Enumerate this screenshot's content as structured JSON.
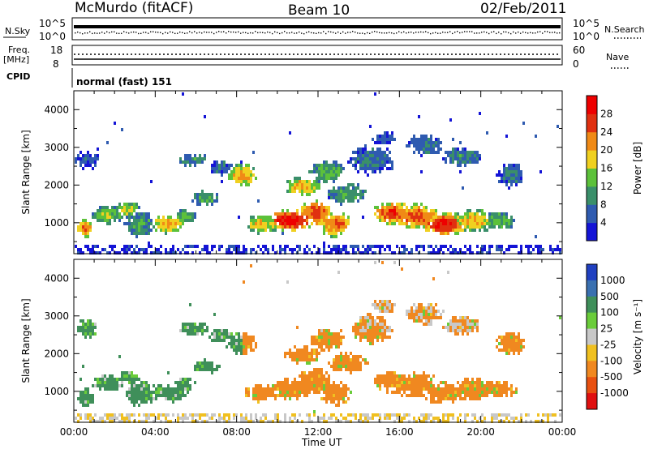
{
  "header": {
    "station": "McMurdo (fitACF)",
    "beam": "Beam 10",
    "date": "02/Feb/2011"
  },
  "strips": {
    "nsky_label": "N.Sky",
    "nsky_tick_top": "10^5",
    "nsky_tick_bottom": "10^0",
    "nsearch_label": "N.Search",
    "nsearch_tick_top": "10^5",
    "nsearch_tick_bottom": "10^0",
    "freq_label": "Freq.",
    "freq_unit": "[MHz]",
    "freq_tick_top": "18",
    "freq_tick_bottom": "8",
    "nave_label": "Nave",
    "nave_tick_top": "60",
    "nave_tick_bottom": "0",
    "cpid_label": "CPID",
    "cpid_value": "normal (fast) 151"
  },
  "chart_data": [
    {
      "type": "heatmap",
      "panel": "power",
      "ylabel": "Slant Range [km]",
      "xlabel": "Time UT",
      "ylim": [
        180,
        4500
      ],
      "yticks": [
        "1000",
        "2000",
        "3000",
        "4000"
      ],
      "xticks": [
        "00:00",
        "04:00",
        "08:00",
        "12:00",
        "16:00",
        "20:00",
        "00:00"
      ],
      "colorbar_label": "Power [dB]",
      "colorbar_ticks": [
        "4",
        "8",
        "12",
        "16",
        "20",
        "24",
        "28"
      ],
      "colors": [
        "#1414d6",
        "#2f5bb0",
        "#3a8f6a",
        "#5cc13a",
        "#f0d020",
        "#f08a16",
        "#e03010",
        "#ee0000"
      ]
    },
    {
      "type": "heatmap",
      "panel": "velocity",
      "ylabel": "Slant Range [km]",
      "xlabel": "Time UT",
      "ylim": [
        180,
        4500
      ],
      "yticks": [
        "1000",
        "2000",
        "3000",
        "4000"
      ],
      "xticks": [
        "00:00",
        "04:00",
        "08:00",
        "12:00",
        "16:00",
        "20:00",
        "00:00"
      ],
      "colorbar_label": "Velocity [m s⁻¹]",
      "colorbar_ticks": [
        "1000",
        "500",
        "100",
        "25",
        "-25",
        "-100",
        "-500",
        "-1000"
      ],
      "colors": [
        "#2040c0",
        "#3a70b0",
        "#3f8f5a",
        "#6acc3a",
        "#c8c8c8",
        "#f0c020",
        "#f08820",
        "#e85010",
        "#e01010"
      ]
    }
  ]
}
